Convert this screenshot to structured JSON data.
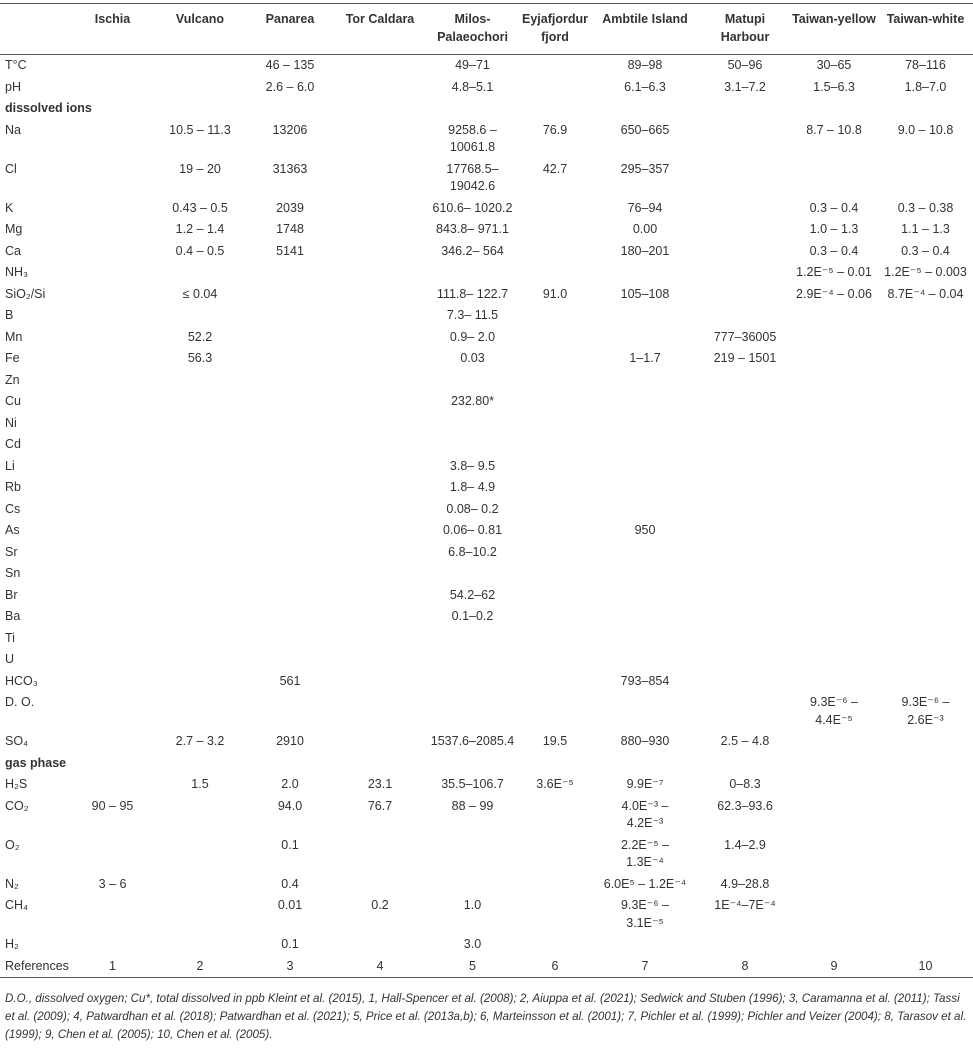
{
  "table": {
    "headers": [
      "Ischia",
      "Vulcano",
      "Panarea",
      "Tor Caldara",
      [
        "Milos-",
        "Palaeochori"
      ],
      [
        "Eyjafjordur",
        "fjord"
      ],
      "Ambtile Island",
      [
        "Matupi",
        "Harbour"
      ],
      "Taiwan-yellow",
      "Taiwan-white"
    ],
    "rows": [
      {
        "label": "T°C",
        "cells": [
          null,
          null,
          "46 – 135",
          null,
          "49–71",
          null,
          "89–98",
          "50–96",
          "30–65",
          "78–116"
        ]
      },
      {
        "label": "pH",
        "cells": [
          null,
          null,
          "2.6 – 6.0",
          null,
          "4.8–5.1",
          null,
          "6.1–6.3",
          "3.1–7.2",
          "1.5–6.3",
          "1.8–7.0"
        ]
      },
      {
        "section": "dissolved ions"
      },
      {
        "label": "Na",
        "cells": [
          null,
          "10.5 – 11.3",
          "13206",
          null,
          [
            "9258.6 –",
            "10061.8"
          ],
          "76.9",
          "650–665",
          null,
          "8.7 – 10.8",
          "9.0 – 10.8"
        ]
      },
      {
        "label": "Cl",
        "cells": [
          null,
          "19 – 20",
          "31363",
          null,
          [
            "17768.5–",
            "19042.6"
          ],
          "42.7",
          "295–357",
          null,
          null,
          null
        ]
      },
      {
        "label": "K",
        "cells": [
          null,
          "0.43 – 0.5",
          "2039",
          null,
          "610.6– 1020.2",
          null,
          "76–94",
          null,
          "0.3 – 0.4",
          "0.3 – 0.38"
        ]
      },
      {
        "label": "Mg",
        "cells": [
          null,
          "1.2 – 1.4",
          "1748",
          null,
          "843.8– 971.1",
          null,
          "0.00",
          null,
          "1.0 – 1.3",
          "1.1 – 1.3"
        ]
      },
      {
        "label": "Ca",
        "cells": [
          null,
          "0.4 – 0.5",
          "5141",
          null,
          "346.2– 564",
          null,
          "180–201",
          null,
          "0.3 – 0.4",
          "0.3 – 0.4"
        ]
      },
      {
        "label": "NH₃",
        "cells": [
          null,
          null,
          null,
          null,
          null,
          null,
          null,
          null,
          "1.2E⁻⁵ – 0.01",
          "1.2E⁻⁵ – 0.003"
        ]
      },
      {
        "label": "SiO₂/Si",
        "cells": [
          null,
          "≤ 0.04",
          null,
          null,
          "111.8– 122.7",
          "91.0",
          "105–108",
          null,
          "2.9E⁻⁴ – 0.06",
          "8.7E⁻⁴ – 0.04"
        ]
      },
      {
        "label": "B",
        "cells": [
          null,
          null,
          null,
          null,
          "7.3– 11.5",
          null,
          null,
          null,
          null,
          null
        ]
      },
      {
        "label": "Mn",
        "cells": [
          null,
          "52.2",
          null,
          null,
          "0.9– 2.0",
          null,
          null,
          "777–36005",
          null,
          null
        ]
      },
      {
        "label": "Fe",
        "cells": [
          null,
          "56.3",
          null,
          null,
          "0.03",
          null,
          "1–1.7",
          "219 – 1501",
          null,
          null
        ]
      },
      {
        "label": "Zn",
        "cells": [
          null,
          null,
          null,
          null,
          null,
          null,
          null,
          null,
          null,
          null
        ]
      },
      {
        "label": "Cu",
        "cells": [
          null,
          null,
          null,
          null,
          "232.80*",
          null,
          null,
          null,
          null,
          null
        ]
      },
      {
        "label": "Ni",
        "cells": [
          null,
          null,
          null,
          null,
          null,
          null,
          null,
          null,
          null,
          null
        ]
      },
      {
        "label": "Cd",
        "cells": [
          null,
          null,
          null,
          null,
          null,
          null,
          null,
          null,
          null,
          null
        ]
      },
      {
        "label": "Li",
        "cells": [
          null,
          null,
          null,
          null,
          "3.8– 9.5",
          null,
          null,
          null,
          null,
          null
        ]
      },
      {
        "label": "Rb",
        "cells": [
          null,
          null,
          null,
          null,
          "1.8– 4.9",
          null,
          null,
          null,
          null,
          null
        ]
      },
      {
        "label": "Cs",
        "cells": [
          null,
          null,
          null,
          null,
          "0.08– 0.2",
          null,
          null,
          null,
          null,
          null
        ]
      },
      {
        "label": "As",
        "cells": [
          null,
          null,
          null,
          null,
          "0.06– 0.81",
          null,
          "950",
          null,
          null,
          null
        ]
      },
      {
        "label": "Sr",
        "cells": [
          null,
          null,
          null,
          null,
          "6.8–10.2",
          null,
          null,
          null,
          null,
          null
        ]
      },
      {
        "label": "Sn",
        "cells": [
          null,
          null,
          null,
          null,
          null,
          null,
          null,
          null,
          null,
          null
        ]
      },
      {
        "label": "Br",
        "cells": [
          null,
          null,
          null,
          null,
          "54.2–62",
          null,
          null,
          null,
          null,
          null
        ]
      },
      {
        "label": "Ba",
        "cells": [
          null,
          null,
          null,
          null,
          "0.1–0.2",
          null,
          null,
          null,
          null,
          null
        ]
      },
      {
        "label": "Ti",
        "cells": [
          null,
          null,
          null,
          null,
          null,
          null,
          null,
          null,
          null,
          null
        ]
      },
      {
        "label": "U",
        "cells": [
          null,
          null,
          null,
          null,
          null,
          null,
          null,
          null,
          null,
          null
        ]
      },
      {
        "label": "HCO₃",
        "cells": [
          null,
          null,
          "561",
          null,
          null,
          null,
          "793–854",
          null,
          null,
          null
        ]
      },
      {
        "label": "D. O.",
        "cells": [
          null,
          null,
          null,
          null,
          null,
          null,
          null,
          null,
          [
            "9.3E⁻⁶ –",
            "4.4E⁻⁵"
          ],
          [
            "9.3E⁻⁶ –",
            "2.6E⁻³"
          ]
        ]
      },
      {
        "label": "SO₄",
        "cells": [
          null,
          "2.7 – 3.2",
          "2910",
          null,
          "1537.6–2085.4",
          "19.5",
          "880–930",
          "2.5 – 4.8",
          null,
          null
        ]
      },
      {
        "section": "gas phase"
      },
      {
        "label": "H₂S",
        "cells": [
          null,
          "1.5",
          "2.0",
          "23.1",
          "35.5–106.7",
          "3.6E⁻⁵",
          "9.9E⁻⁷",
          "0–8.3",
          null,
          null
        ]
      },
      {
        "label": "CO₂",
        "cells": [
          "90 – 95",
          null,
          "94.0",
          "76.7",
          "88 – 99",
          null,
          [
            "4.0E⁻³ –",
            "4.2E⁻³"
          ],
          "62.3–93.6",
          null,
          null
        ]
      },
      {
        "label": "O₂",
        "cells": [
          null,
          null,
          "0.1",
          null,
          null,
          null,
          [
            "2.2E⁻⁵ –",
            "1.3E⁻⁴"
          ],
          "1.4–2.9",
          null,
          null
        ]
      },
      {
        "label": "N₂",
        "cells": [
          "3 – 6",
          null,
          "0.4",
          null,
          null,
          null,
          "6.0E⁵ – 1.2E⁻⁴",
          "4.9–28.8",
          null,
          null
        ]
      },
      {
        "label": "CH₄",
        "cells": [
          null,
          null,
          "0.01",
          "0.2",
          "1.0",
          null,
          [
            "9.3E⁻⁶ –",
            "3.1E⁻⁵"
          ],
          "1E⁻⁴–7E⁻⁴",
          null,
          null
        ]
      },
      {
        "label": "H₂",
        "cells": [
          null,
          null,
          "0.1",
          null,
          "3.0",
          null,
          null,
          null,
          null,
          null
        ]
      },
      {
        "label": "References",
        "cells": [
          1,
          2,
          3,
          4,
          5,
          6,
          7,
          8,
          9,
          10
        ]
      }
    ]
  },
  "footnote": "D.O., dissolved oxygen; Cu*, total dissolved in ppb Kleint et al. (2015), 1, Hall-Spencer et al. (2008); 2, Aiuppa et al. (2021); Sedwick and Stuben (1996); 3, Caramanna et al. (2011); Tassi et al. (2009); 4, Patwardhan et al. (2018); Patwardhan et al. (2021); 5, Price et al. (2013a,b); 6, Marteinsson et al. (2001); 7, Pichler et al. (1999); Pichler and Veizer (2004); 8, Tarasov et al. (1999); 9, Chen et al. (2005); 10, Chen et al. (2005)."
}
